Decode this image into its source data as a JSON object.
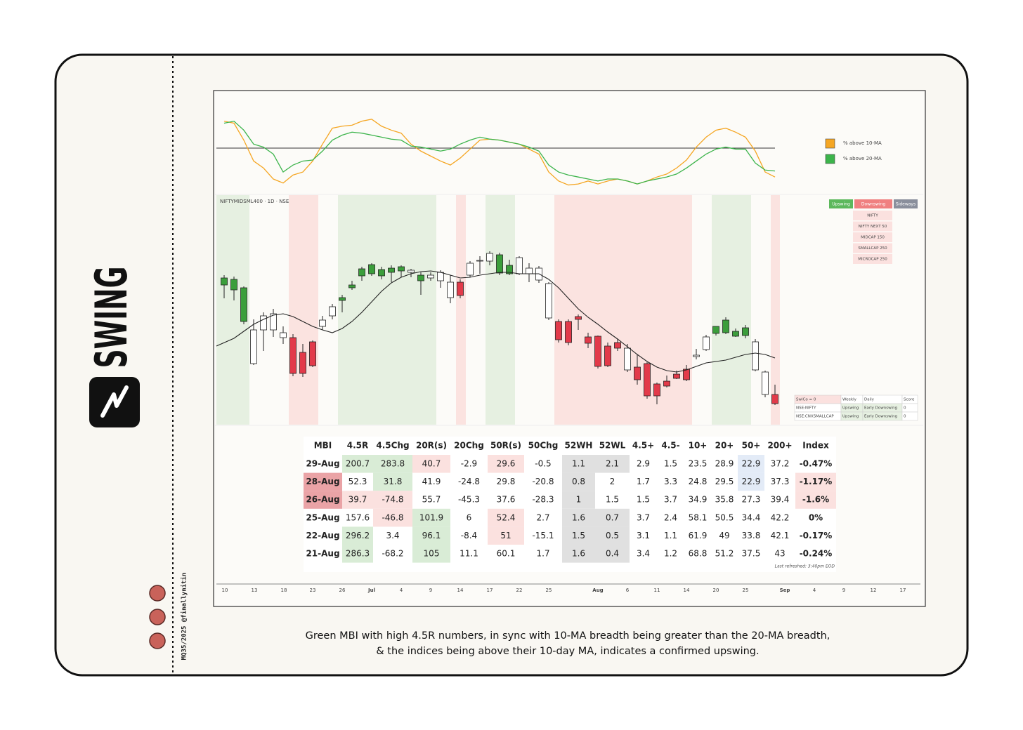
{
  "brand": "SWING",
  "credit": "MQ35/2025 @finallynitin",
  "caption": [
    "Green MBI with high 4.5R numbers, in sync with 10-MA breadth being greater than the 20-MA breadth,",
    "& the indices being above their 10-day MA, indicates a confirmed upswing."
  ],
  "breadth": {
    "ylim": [
      0,
      100
    ],
    "reference": 50,
    "series": [
      {
        "name": "% above 10-MA",
        "color": "#f5a623",
        "values": [
          77,
          75,
          58,
          37,
          30,
          19,
          15,
          23,
          26,
          37,
          54,
          70,
          72,
          73,
          77,
          79,
          72,
          68,
          65,
          54,
          47,
          42,
          37,
          33,
          40,
          49,
          58,
          59,
          58,
          56,
          54,
          49,
          44,
          26,
          17,
          13,
          14,
          17,
          14,
          17,
          19,
          17,
          14,
          17,
          21,
          24,
          30,
          38,
          51,
          61,
          68,
          70,
          66,
          61,
          47,
          26,
          21
        ]
      },
      {
        "name": "% above 20-MA",
        "color": "#3cb44b",
        "values": [
          75,
          77,
          68,
          54,
          51,
          44,
          26,
          33,
          37,
          38,
          47,
          58,
          63,
          66,
          65,
          63,
          61,
          59,
          58,
          52,
          51,
          49,
          47,
          49,
          54,
          58,
          61,
          59,
          58,
          56,
          54,
          51,
          47,
          33,
          26,
          23,
          21,
          19,
          17,
          19,
          19,
          17,
          14,
          17,
          19,
          21,
          24,
          30,
          37,
          44,
          49,
          51,
          49,
          49,
          35,
          28,
          27
        ]
      }
    ]
  },
  "price": {
    "label": "NIFTYMIDSML400 · 1D · NSE",
    "ylim": [
      0,
      330
    ],
    "open": [
      199,
      192,
      147,
      87,
      135,
      135,
      124,
      124,
      103,
      118,
      140,
      155,
      177,
      195,
      212,
      215,
      212,
      217,
      219,
      217,
      205,
      209,
      205,
      181,
      203,
      213,
      233,
      233,
      216,
      215,
      215,
      215,
      206,
      152,
      147,
      147,
      154,
      125,
      126,
      112,
      117,
      78,
      82,
      87,
      58,
      62,
      72,
      79,
      97,
      107,
      130,
      131,
      126,
      127,
      78,
      43,
      43
    ],
    "high": [
      213,
      211,
      197,
      150,
      160,
      165,
      140,
      129,
      115,
      120,
      155,
      172,
      185,
      205,
      225,
      230,
      225,
      227,
      227,
      222,
      217,
      217,
      220,
      213,
      207,
      233,
      240,
      247,
      245,
      235,
      240,
      230,
      226,
      203,
      150,
      150,
      157,
      131,
      127,
      117,
      122,
      115,
      100,
      89,
      60,
      70,
      77,
      85,
      108,
      128,
      140,
      153,
      137,
      142,
      122,
      77,
      57
    ],
    "low": [
      180,
      177,
      143,
      85,
      105,
      125,
      115,
      69,
      68,
      82,
      135,
      150,
      160,
      192,
      205,
      212,
      207,
      203,
      210,
      210,
      185,
      205,
      195,
      173,
      180,
      210,
      215,
      227,
      213,
      213,
      213,
      203,
      202,
      149,
      117,
      113,
      135,
      109,
      80,
      82,
      105,
      75,
      57,
      37,
      29,
      53,
      65,
      62,
      93,
      105,
      127,
      129,
      125,
      123,
      76,
      39,
      28
    ],
    "close": [
      209,
      207,
      195,
      135,
      155,
      158,
      131,
      73,
      73,
      84,
      149,
      168,
      181,
      199,
      222,
      228,
      221,
      223,
      225,
      220,
      213,
      213,
      217,
      203,
      184,
      230,
      234,
      244,
      242,
      227,
      238,
      223,
      223,
      201,
      121,
      117,
      150,
      116,
      83,
      84,
      109,
      109,
      64,
      41,
      41,
      55,
      66,
      64,
      99,
      125,
      140,
      149,
      133,
      138,
      118,
      75,
      30
    ],
    "colors": [
      "#3b9e3b",
      "#3b9e3b",
      "#3b9e3b",
      "#ffffff",
      "#ffffff",
      "#ffffff",
      "#ffffff",
      "#e23a4a",
      "#e23a4a",
      "#e23a4a",
      "#ffffff",
      "#ffffff",
      "#3b9e3b",
      "#3b9e3b",
      "#3b9e3b",
      "#3b9e3b",
      "#3b9e3b",
      "#3b9e3b",
      "#3b9e3b",
      "#ffffff",
      "#3b9e3b",
      "#ffffff",
      "#ffffff",
      "#ffffff",
      "#e23a4a",
      "#ffffff",
      "#ffffff",
      "#ffffff",
      "#3b9e3b",
      "#3b9e3b",
      "#ffffff",
      "#ffffff",
      "#ffffff",
      "#ffffff",
      "#e23a4a",
      "#e23a4a",
      "#e23a4a",
      "#e23a4a",
      "#e23a4a",
      "#e23a4a",
      "#e23a4a",
      "#ffffff",
      "#e23a4a",
      "#e23a4a",
      "#e23a4a",
      "#e23a4a",
      "#e23a4a",
      "#e23a4a",
      "#ffffff",
      "#ffffff",
      "#3b9e3b",
      "#3b9e3b",
      "#3b9e3b",
      "#3b9e3b",
      "#ffffff",
      "#ffffff",
      "#e23a4a"
    ],
    "ma": {
      "color": "#222222",
      "values": [
        112,
        123,
        133,
        143,
        150,
        156,
        158,
        154,
        147,
        140,
        135,
        131,
        137,
        147,
        160,
        175,
        190,
        202,
        210,
        215,
        218,
        219,
        217,
        213,
        209,
        210,
        213,
        215,
        217,
        217,
        215,
        215,
        215,
        207,
        195,
        180,
        165,
        153,
        143,
        132,
        122,
        111,
        100,
        90,
        82,
        77,
        75,
        78,
        83,
        88,
        90,
        92,
        96,
        100,
        102,
        100,
        95
      ]
    }
  },
  "swing_legend": {
    "buttons": [
      {
        "label": "Upswing",
        "color": "#5cb85c"
      },
      {
        "label": "Downswing",
        "color": "#f08080"
      },
      {
        "label": "Sideways",
        "color": "#8a8f9c"
      }
    ],
    "indices": [
      "NIFTY",
      "NIFTY NEXT 50",
      "MIDCAP 150",
      "SMALLCAP 250",
      "MICROCAP 250"
    ]
  },
  "score_table": {
    "header": [
      "SwiCo = 0",
      "Weekly",
      "Daily",
      "Score"
    ],
    "rows": [
      [
        "NSE:NIFTY",
        "Upswing",
        "Early Downswing",
        "0"
      ],
      [
        "NSE:CNXSMALLCAP",
        "Upswing",
        "Early Downswing",
        "0"
      ]
    ]
  },
  "mbi_table": {
    "header": [
      "MBI",
      "4.5R",
      "4.5Chg",
      "20R(s)",
      "20Chg",
      "50R(s)",
      "50Chg",
      "52WH",
      "52WL",
      "4.5+",
      "4.5-",
      "10+",
      "20+",
      "50+",
      "200+",
      "Index"
    ],
    "rows": [
      [
        "29-Aug",
        "200.7",
        "283.8",
        "40.7",
        "-2.9",
        "29.6",
        "-0.5",
        "1.1",
        "2.1",
        "2.9",
        "1.5",
        "23.5",
        "28.9",
        "22.9",
        "37.2",
        "-0.47%"
      ],
      [
        "28-Aug",
        "52.3",
        "31.8",
        "41.9",
        "-24.8",
        "29.8",
        "-20.8",
        "0.8",
        "2",
        "1.7",
        "3.3",
        "24.8",
        "29.5",
        "22.9",
        "37.3",
        "-1.17%"
      ],
      [
        "26-Aug",
        "39.7",
        "-74.8",
        "55.7",
        "-45.3",
        "37.6",
        "-28.3",
        "1",
        "1.5",
        "1.5",
        "3.7",
        "34.9",
        "35.8",
        "27.3",
        "39.4",
        "-1.6%"
      ],
      [
        "25-Aug",
        "157.6",
        "-46.8",
        "101.9",
        "6",
        "52.4",
        "2.7",
        "1.6",
        "0.7",
        "3.7",
        "2.4",
        "58.1",
        "50.5",
        "34.4",
        "42.2",
        "0%"
      ],
      [
        "22-Aug",
        "296.2",
        "3.4",
        "96.1",
        "-8.4",
        "51",
        "-15.1",
        "1.5",
        "0.5",
        "3.1",
        "1.1",
        "61.9",
        "49",
        "33.8",
        "42.1",
        "-0.17%"
      ],
      [
        "21-Aug",
        "286.3",
        "-68.2",
        "105",
        "11.1",
        "60.1",
        "1.7",
        "1.6",
        "0.4",
        "3.4",
        "1.2",
        "68.8",
        "51.2",
        "37.5",
        "43",
        "-0.24%"
      ]
    ],
    "cell_colors": [
      [
        null,
        "#d9ecd6",
        "#d9ecd6",
        "#fbe1df",
        null,
        "#fbe1df",
        null,
        "#e0e0e0",
        "#e0e0e0",
        null,
        null,
        null,
        null,
        "#e3ebf7",
        null,
        null
      ],
      [
        "#eaa3a6",
        null,
        "#d9ecd6",
        null,
        null,
        null,
        null,
        "#e0e0e0",
        null,
        null,
        null,
        null,
        null,
        "#e3ebf7",
        null,
        "#fbe1df"
      ],
      [
        "#eaa3a6",
        "#fbe1df",
        "#fbe1df",
        null,
        null,
        null,
        null,
        "#e0e0e0",
        null,
        null,
        null,
        null,
        null,
        null,
        null,
        "#fbe1df"
      ],
      [
        null,
        null,
        "#fbe1df",
        "#d9ecd6",
        null,
        "#fbe1df",
        null,
        "#e0e0e0",
        "#e0e0e0",
        null,
        null,
        null,
        null,
        null,
        null,
        null
      ],
      [
        null,
        "#d9ecd6",
        null,
        "#d9ecd6",
        null,
        "#fbe1df",
        null,
        "#e0e0e0",
        "#e0e0e0",
        null,
        null,
        null,
        null,
        null,
        null,
        null
      ],
      [
        null,
        "#d9ecd6",
        null,
        "#d9ecd6",
        null,
        null,
        null,
        "#e0e0e0",
        "#e0e0e0",
        null,
        null,
        null,
        null,
        null,
        null,
        null
      ]
    ],
    "note": "Last refreshed: 3:40pm EOD"
  },
  "x_axis": [
    "10",
    "13",
    "18",
    "23",
    "26",
    "Jul",
    "4",
    "9",
    "14",
    "17",
    "22",
    "25",
    "Aug",
    "6",
    "11",
    "14",
    "20",
    "25",
    "Sep",
    "4",
    "9",
    "12",
    "17"
  ]
}
